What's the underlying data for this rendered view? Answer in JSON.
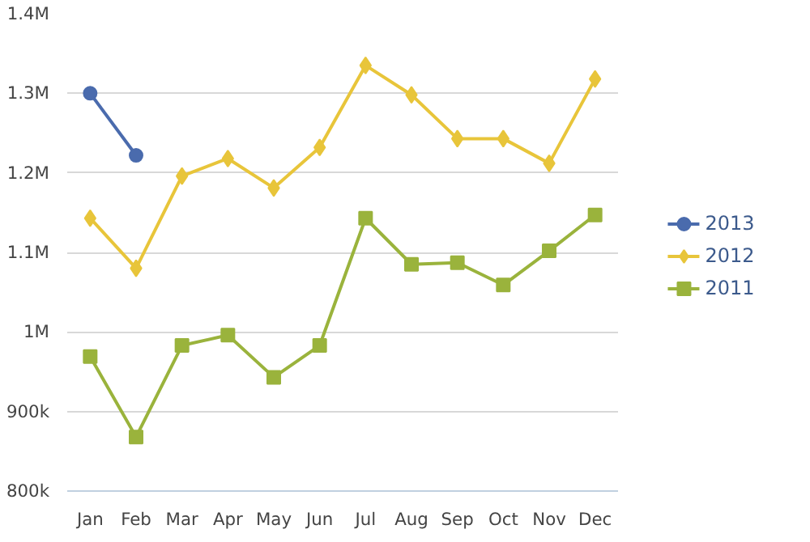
{
  "chart_data": {
    "type": "line",
    "categories": [
      "Jan",
      "Feb",
      "Mar",
      "Apr",
      "May",
      "Jun",
      "Jul",
      "Aug",
      "Sep",
      "Oct",
      "Nov",
      "Dec"
    ],
    "series": [
      {
        "name": "2013",
        "color": "#4a6bad",
        "marker": "circle",
        "values": [
          1300000,
          1222000,
          null,
          null,
          null,
          null,
          null,
          null,
          null,
          null,
          null,
          null
        ]
      },
      {
        "name": "2012",
        "color": "#e8c53a",
        "marker": "diamond",
        "values": [
          1143000,
          1080000,
          1196000,
          1218000,
          1181000,
          1232000,
          1335000,
          1298000,
          1243000,
          1243000,
          1212000,
          1318000
        ]
      },
      {
        "name": "2011",
        "color": "#9ab33c",
        "marker": "square",
        "values": [
          969000,
          868000,
          983000,
          996000,
          943000,
          983000,
          1143000,
          1085000,
          1087000,
          1059000,
          1102000,
          1147000
        ]
      }
    ],
    "ylim": [
      800000,
      1400000
    ],
    "yticks": [
      {
        "value": 800000,
        "label": "800k"
      },
      {
        "value": 900000,
        "label": "900k"
      },
      {
        "value": 1000000,
        "label": "1M"
      },
      {
        "value": 1100000,
        "label": "1.1M"
      },
      {
        "value": 1200000,
        "label": "1.2M"
      },
      {
        "value": 1300000,
        "label": "1.3M"
      },
      {
        "value": 1400000,
        "label": "1.4M"
      }
    ],
    "grid": "y",
    "legend": "right"
  }
}
